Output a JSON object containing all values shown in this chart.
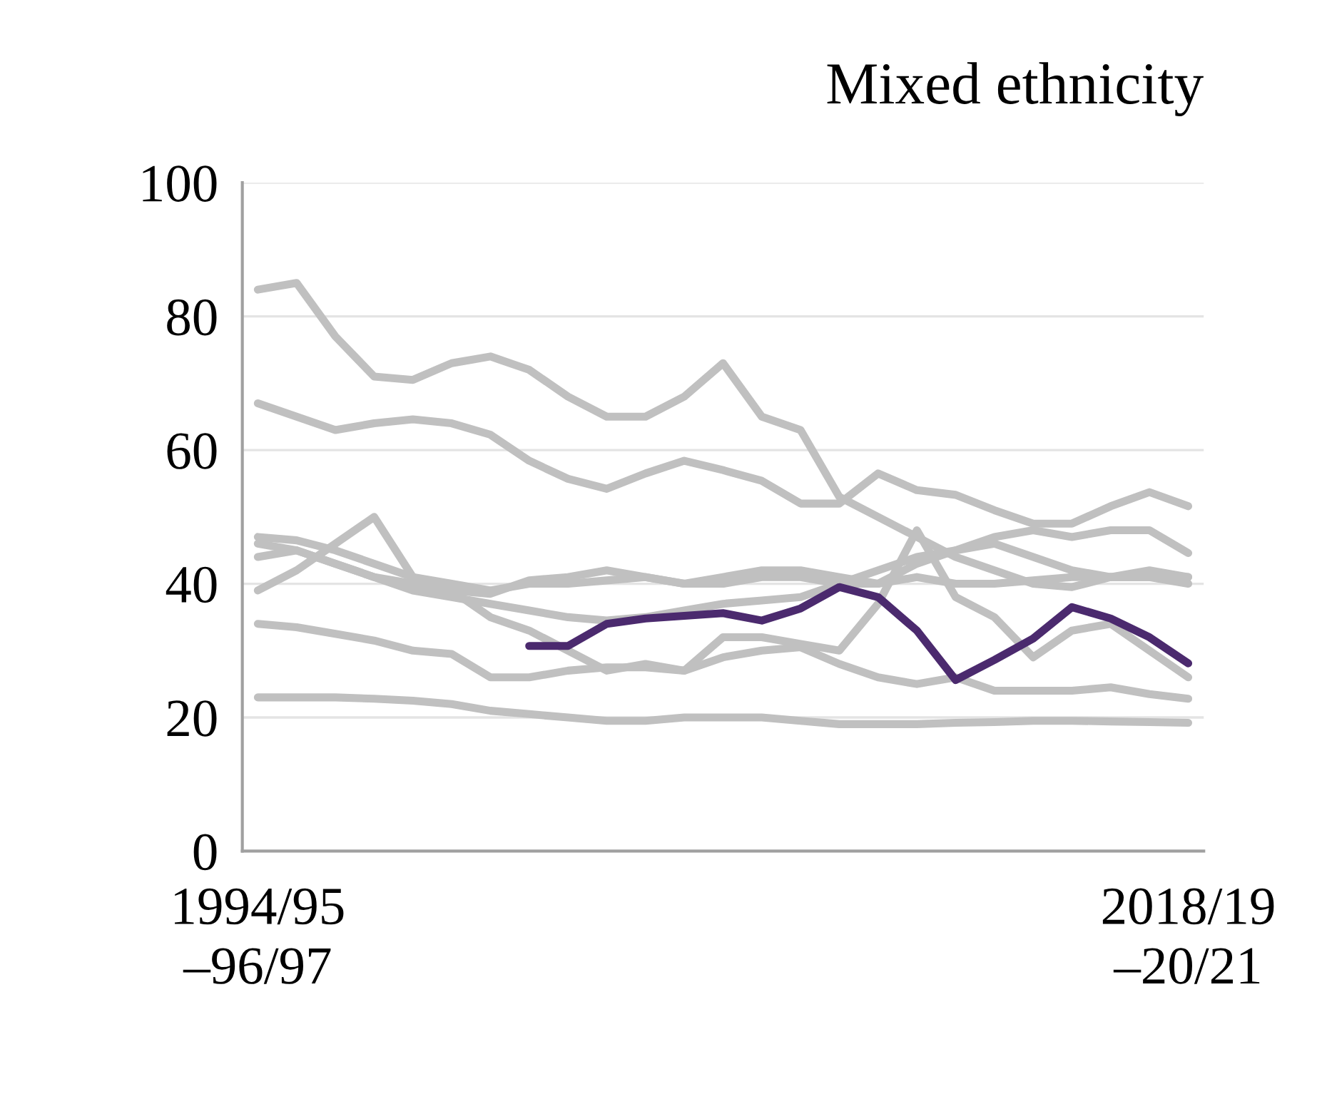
{
  "chart_data": {
    "type": "line",
    "title": "Mixed ethnicity",
    "categories": [
      "1994/95\n–96/97",
      null,
      null,
      null,
      null,
      null,
      null,
      null,
      null,
      null,
      null,
      null,
      null,
      null,
      null,
      null,
      null,
      null,
      null,
      null,
      null,
      null,
      null,
      null,
      "2018/19\n–20/21"
    ],
    "ylim": [
      0,
      100
    ],
    "yticks": [
      0,
      20,
      40,
      60,
      80,
      100
    ],
    "grid": "y",
    "legend": false,
    "marker": "none",
    "line_style": "solid",
    "series": [
      {
        "color": "#c0c0c0",
        "values": [
          84,
          85,
          77,
          71,
          70.5,
          73,
          74,
          72,
          68,
          65,
          65,
          68,
          73,
          65,
          63,
          53,
          50,
          47,
          44,
          42,
          40,
          39.5,
          41,
          41,
          40
        ]
      },
      {
        "color": "#c0c0c0",
        "values": [
          67,
          65,
          63,
          64,
          64.6,
          64,
          62.3,
          58.4,
          55.7,
          54.2,
          56.5,
          58.4,
          57,
          55.4,
          52,
          52,
          56.5,
          54,
          53.3,
          51,
          49,
          49,
          51.6,
          53.7,
          51.6
        ]
      },
      {
        "color": "#c0c0c0",
        "values": [
          47,
          46.5,
          45,
          43,
          41,
          40,
          39,
          40,
          40,
          40.5,
          41,
          40,
          41,
          42,
          42,
          41,
          40,
          43,
          45,
          47,
          48,
          47,
          48,
          48,
          44.6
        ]
      },
      {
        "color": "#c0c0c0",
        "values": [
          46,
          45,
          43,
          41,
          39,
          38,
          37,
          36,
          35,
          34.5,
          35,
          36,
          37,
          37.5,
          38,
          40,
          42,
          44,
          45,
          46,
          44,
          42,
          41,
          41,
          41
        ]
      },
      {
        "color": "#c0c0c0",
        "values": [
          44,
          45,
          43,
          41,
          40,
          39,
          35,
          33,
          30,
          27,
          28,
          27,
          32,
          32,
          31,
          30,
          37,
          48,
          38,
          35,
          29,
          33,
          34,
          30,
          26
        ]
      },
      {
        "color": "#c0c0c0",
        "values": [
          39,
          42,
          46,
          50,
          41,
          39,
          38.5,
          40.5,
          41,
          42,
          41,
          40,
          40,
          41,
          41,
          40,
          40,
          41,
          40,
          40,
          40.5,
          41,
          41,
          42,
          41
        ]
      },
      {
        "color": "#c0c0c0",
        "values": [
          34,
          33.5,
          32.5,
          31.5,
          30,
          29.5,
          26,
          26,
          27,
          27.5,
          27.5,
          27,
          29,
          30,
          30.5,
          28,
          26,
          25,
          26,
          24,
          24,
          24,
          24.5,
          23.5,
          22.8
        ]
      },
      {
        "color": "#c0c0c0",
        "values": [
          23,
          23,
          23,
          22.8,
          22.5,
          22,
          21,
          20.5,
          20,
          19.5,
          19.5,
          20,
          20,
          20,
          19.5,
          19,
          19,
          19,
          19.2,
          19.3,
          19.5,
          19.5,
          19.4,
          19.3,
          19.2
        ]
      },
      {
        "color": "#4b2a6e",
        "values": [
          null,
          null,
          null,
          null,
          null,
          null,
          null,
          30.7,
          30.7,
          34,
          34.8,
          35.2,
          35.6,
          34.5,
          36.3,
          39.5,
          38,
          33,
          25.6,
          28.6,
          31.8,
          36.5,
          34.8,
          32,
          28.1
        ]
      }
    ]
  }
}
